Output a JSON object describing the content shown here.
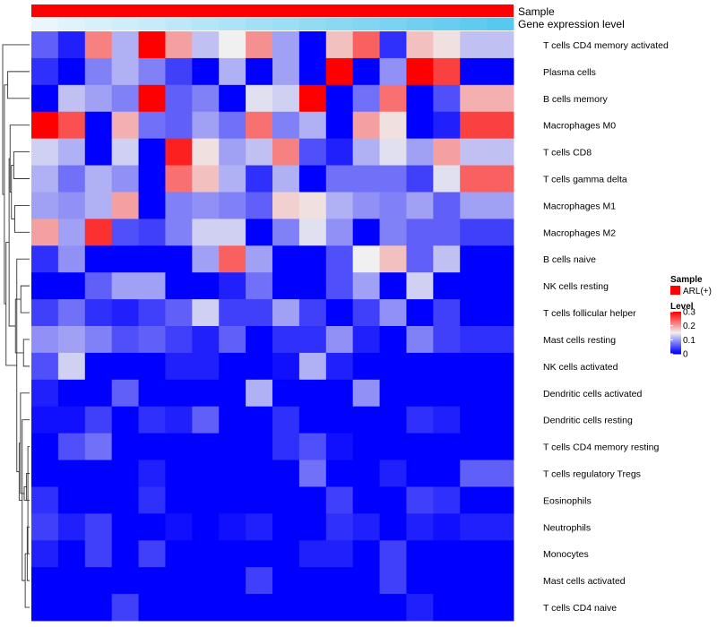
{
  "chart_data": {
    "type": "heatmap",
    "title": "",
    "annotation_labels": {
      "top": "Sample",
      "bottom": "Gene expression level"
    },
    "annotation_colors": {
      "sample": "#ff0000",
      "expression_start": "#e9f6fb",
      "expression_end": "#57c8ee"
    },
    "n_columns": 18,
    "colors": {
      "low": "#0000ff",
      "mid": "#f0f0f0",
      "high": "#ff0000"
    },
    "value_range": [
      0,
      0.3
    ],
    "rows": [
      "T cells CD4 memory activated",
      "Plasma cells",
      "B cells memory",
      "Macrophages M0",
      "T cells CD8",
      "T cells gamma delta",
      "Macrophages M1",
      "Macrophages M2",
      "B cells naive",
      "NK cells resting",
      "T cells follicular helper",
      "Mast cells resting",
      "NK cells activated",
      "Dendritic cells activated",
      "Dendritic cells resting",
      "T cells CD4 memory resting",
      "T cells regulatory  Tregs",
      "Eosinophils",
      "Neutrophils",
      "Monocytes",
      "Mast cells activated",
      "T cells CD4 naive"
    ],
    "values": [
      [
        0.06,
        0.02,
        0.22,
        0.11,
        0.3,
        0.2,
        0.12,
        0.15,
        0.21,
        0.1,
        0.0,
        0.18,
        0.24,
        0.03,
        0.18,
        0.16,
        0.12,
        0.12
      ],
      [
        0.03,
        0.0,
        0.08,
        0.11,
        0.08,
        0.04,
        0.0,
        0.11,
        0.0,
        0.1,
        0.0,
        0.3,
        0.0,
        0.09,
        0.3,
        0.26,
        0.0,
        0.0
      ],
      [
        0.0,
        0.12,
        0.1,
        0.08,
        0.3,
        0.06,
        0.08,
        0.0,
        0.14,
        0.13,
        0.3,
        0.0,
        0.07,
        0.23,
        0.0,
        0.05,
        0.19,
        0.19
      ],
      [
        0.3,
        0.25,
        0.0,
        0.19,
        0.07,
        0.06,
        0.1,
        0.07,
        0.23,
        0.08,
        0.11,
        0.0,
        0.2,
        0.16,
        0.0,
        0.02,
        0.26,
        0.26
      ],
      [
        0.13,
        0.11,
        0.0,
        0.13,
        0.0,
        0.28,
        0.16,
        0.1,
        0.12,
        0.22,
        0.05,
        0.02,
        0.11,
        0.14,
        0.1,
        0.2,
        0.12,
        0.12
      ],
      [
        0.11,
        0.07,
        0.11,
        0.09,
        0.0,
        0.23,
        0.18,
        0.11,
        0.03,
        0.11,
        0.0,
        0.07,
        0.07,
        0.07,
        0.04,
        0.14,
        0.24,
        0.24
      ],
      [
        0.1,
        0.09,
        0.11,
        0.2,
        0.0,
        0.08,
        0.09,
        0.08,
        0.06,
        0.17,
        0.16,
        0.11,
        0.09,
        0.08,
        0.1,
        0.06,
        0.1,
        0.1
      ],
      [
        0.2,
        0.1,
        0.27,
        0.05,
        0.04,
        0.08,
        0.13,
        0.13,
        0.0,
        0.08,
        0.14,
        0.09,
        0.0,
        0.08,
        0.06,
        0.06,
        0.04,
        0.04
      ],
      [
        0.03,
        0.09,
        0.0,
        0.0,
        0.0,
        0.0,
        0.1,
        0.24,
        0.1,
        0.0,
        0.0,
        0.05,
        0.15,
        0.18,
        0.06,
        0.12,
        0.0,
        0.0
      ],
      [
        0.0,
        0.0,
        0.06,
        0.1,
        0.1,
        0.0,
        0.0,
        0.02,
        0.07,
        0.0,
        0.0,
        0.05,
        0.1,
        0.0,
        0.13,
        0.0,
        0.0,
        0.0
      ],
      [
        0.04,
        0.07,
        0.03,
        0.02,
        0.04,
        0.06,
        0.13,
        0.04,
        0.04,
        0.1,
        0.04,
        0.0,
        0.04,
        0.09,
        0.0,
        0.04,
        0.0,
        0.0
      ],
      [
        0.09,
        0.1,
        0.08,
        0.05,
        0.06,
        0.04,
        0.02,
        0.06,
        0.0,
        0.03,
        0.03,
        0.09,
        0.02,
        0.0,
        0.08,
        0.04,
        0.03,
        0.03
      ],
      [
        0.05,
        0.13,
        0.0,
        0.0,
        0.0,
        0.02,
        0.02,
        0.0,
        0.0,
        0.01,
        0.11,
        0.02,
        0.0,
        0.0,
        0.0,
        0.0,
        0.0,
        0.0
      ],
      [
        0.02,
        0.0,
        0.0,
        0.06,
        0.0,
        0.0,
        0.0,
        0.0,
        0.11,
        0.0,
        0.0,
        0.0,
        0.09,
        0.0,
        0.0,
        0.0,
        0.0,
        0.0
      ],
      [
        0.01,
        0.01,
        0.04,
        0.0,
        0.03,
        0.02,
        0.06,
        0.0,
        0.0,
        0.03,
        0.0,
        0.0,
        0.0,
        0.0,
        0.03,
        0.02,
        0.0,
        0.0
      ],
      [
        0.0,
        0.05,
        0.07,
        0.0,
        0.0,
        0.0,
        0.0,
        0.0,
        0.0,
        0.03,
        0.05,
        0.01,
        0.0,
        0.0,
        0.0,
        0.0,
        0.0,
        0.0
      ],
      [
        0.0,
        0.0,
        0.0,
        0.0,
        0.02,
        0.0,
        0.0,
        0.0,
        0.0,
        0.0,
        0.07,
        0.0,
        0.0,
        0.02,
        0.0,
        0.0,
        0.06,
        0.06
      ],
      [
        0.03,
        0.0,
        0.0,
        0.0,
        0.03,
        0.0,
        0.0,
        0.0,
        0.0,
        0.0,
        0.0,
        0.04,
        0.0,
        0.0,
        0.04,
        0.03,
        0.0,
        0.0
      ],
      [
        0.04,
        0.02,
        0.04,
        0.0,
        0.0,
        0.01,
        0.0,
        0.01,
        0.02,
        0.0,
        0.0,
        0.03,
        0.02,
        0.0,
        0.02,
        0.01,
        0.02,
        0.02
      ],
      [
        0.02,
        0.0,
        0.04,
        0.0,
        0.04,
        0.0,
        0.0,
        0.0,
        0.0,
        0.0,
        0.02,
        0.02,
        0.0,
        0.04,
        0.0,
        0.0,
        0.0,
        0.0
      ],
      [
        0.0,
        0.0,
        0.0,
        0.0,
        0.0,
        0.0,
        0.0,
        0.0,
        0.04,
        0.0,
        0.0,
        0.0,
        0.0,
        0.04,
        0.0,
        0.0,
        0.0,
        0.0
      ],
      [
        0.0,
        0.0,
        0.0,
        0.04,
        0.0,
        0.0,
        0.0,
        0.0,
        0.0,
        0.0,
        0.0,
        0.0,
        0.0,
        0.0,
        0.02,
        0.0,
        0.0,
        0.0
      ]
    ],
    "dendrogram_merges": [
      [
        16,
        20,
        1.0
      ],
      [
        19,
        21,
        1.4
      ],
      [
        17,
        18,
        1.8
      ],
      [
        22,
        24,
        2.6
      ],
      [
        23,
        25,
        3.2
      ],
      [
        15,
        26,
        4.4
      ],
      [
        14,
        27,
        5.4
      ],
      [
        12,
        13,
        3.6
      ],
      [
        28,
        29,
        6.2
      ],
      [
        10,
        11,
        5.2
      ],
      [
        9,
        31,
        7.6
      ],
      [
        30,
        32,
        8.4
      ],
      [
        7,
        8,
        8.8
      ],
      [
        5,
        6,
        9.4
      ],
      [
        35,
        36,
        10.8
      ],
      [
        4,
        37,
        11.6
      ],
      [
        34,
        38,
        12.2
      ],
      [
        2,
        3,
        13.0
      ],
      [
        33,
        39,
        14.0
      ],
      [
        40,
        41,
        15.0
      ],
      [
        1,
        42,
        16.0
      ]
    ],
    "legend": {
      "sample_title": "Sample",
      "sample_entry": "ARL(+)",
      "level_title": "Level",
      "ticks": [
        {
          "value": 0.3,
          "label": "0.3"
        },
        {
          "value": 0.2,
          "label": "0.2"
        },
        {
          "value": 0.1,
          "label": "0.1"
        },
        {
          "value": 0.0,
          "label": "0"
        }
      ]
    }
  }
}
